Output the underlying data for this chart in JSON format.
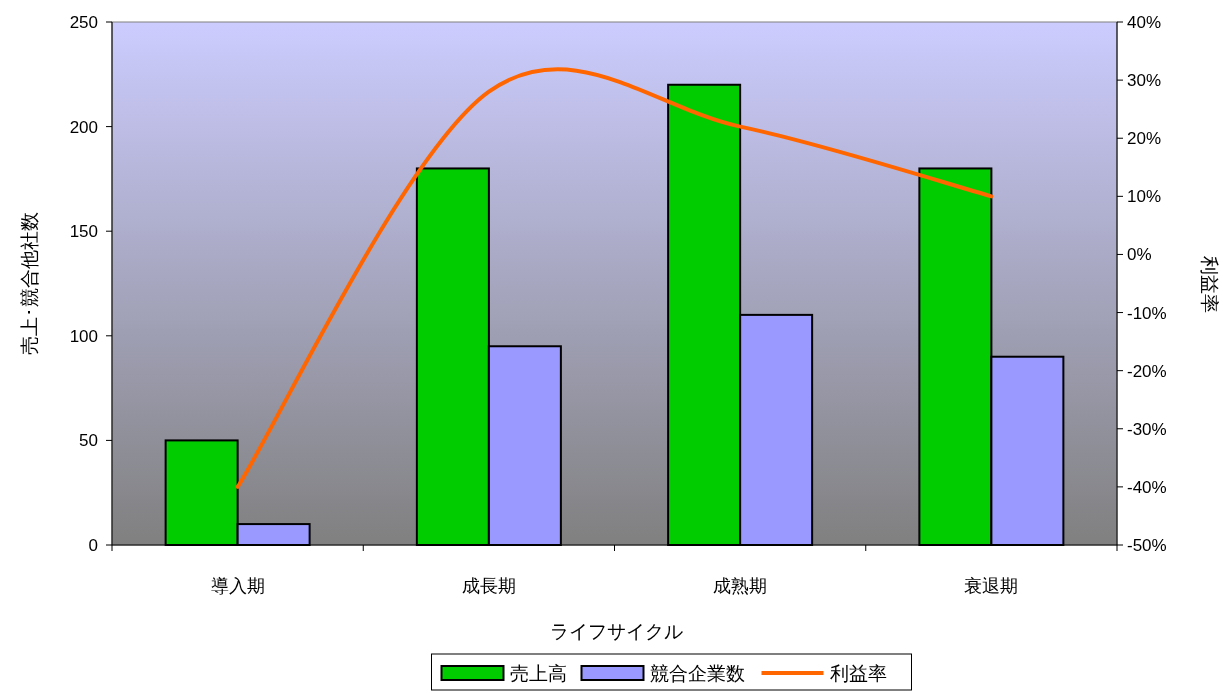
{
  "chart_data": {
    "type": "bar",
    "xlabel": "ライフサイクル",
    "ylabel": "売上･競合他社数",
    "y2label": "利益率",
    "categories": [
      "導入期",
      "成長期",
      "成熟期",
      "衰退期"
    ],
    "series": [
      {
        "name": "売上高",
        "color": "#00cc00",
        "values": [
          50,
          180,
          220,
          180
        ]
      },
      {
        "name": "競合企業数",
        "color": "#9999ff",
        "values": [
          10,
          95,
          110,
          90
        ]
      },
      {
        "name": "利益率",
        "type": "line",
        "axis": "y2",
        "color": "#ff6600",
        "values": [
          -40,
          28,
          22,
          10
        ]
      }
    ],
    "ylim": [
      0,
      250
    ],
    "yticks": [
      0,
      50,
      100,
      150,
      200,
      250
    ],
    "y2lim": [
      -50,
      40
    ],
    "y2ticks": [
      {
        "value": -50,
        "label": "-50%"
      },
      {
        "value": -40,
        "label": "-40%"
      },
      {
        "value": -30,
        "label": "-30%"
      },
      {
        "value": -20,
        "label": "-20%"
      },
      {
        "value": -10,
        "label": "-10%"
      },
      {
        "value": 0,
        "label": "0%"
      },
      {
        "value": 10,
        "label": "10%"
      },
      {
        "value": 20,
        "label": "20%"
      },
      {
        "value": 30,
        "label": "30%"
      },
      {
        "value": 40,
        "label": "40%"
      }
    ],
    "grid": false,
    "legend": "bottom"
  }
}
